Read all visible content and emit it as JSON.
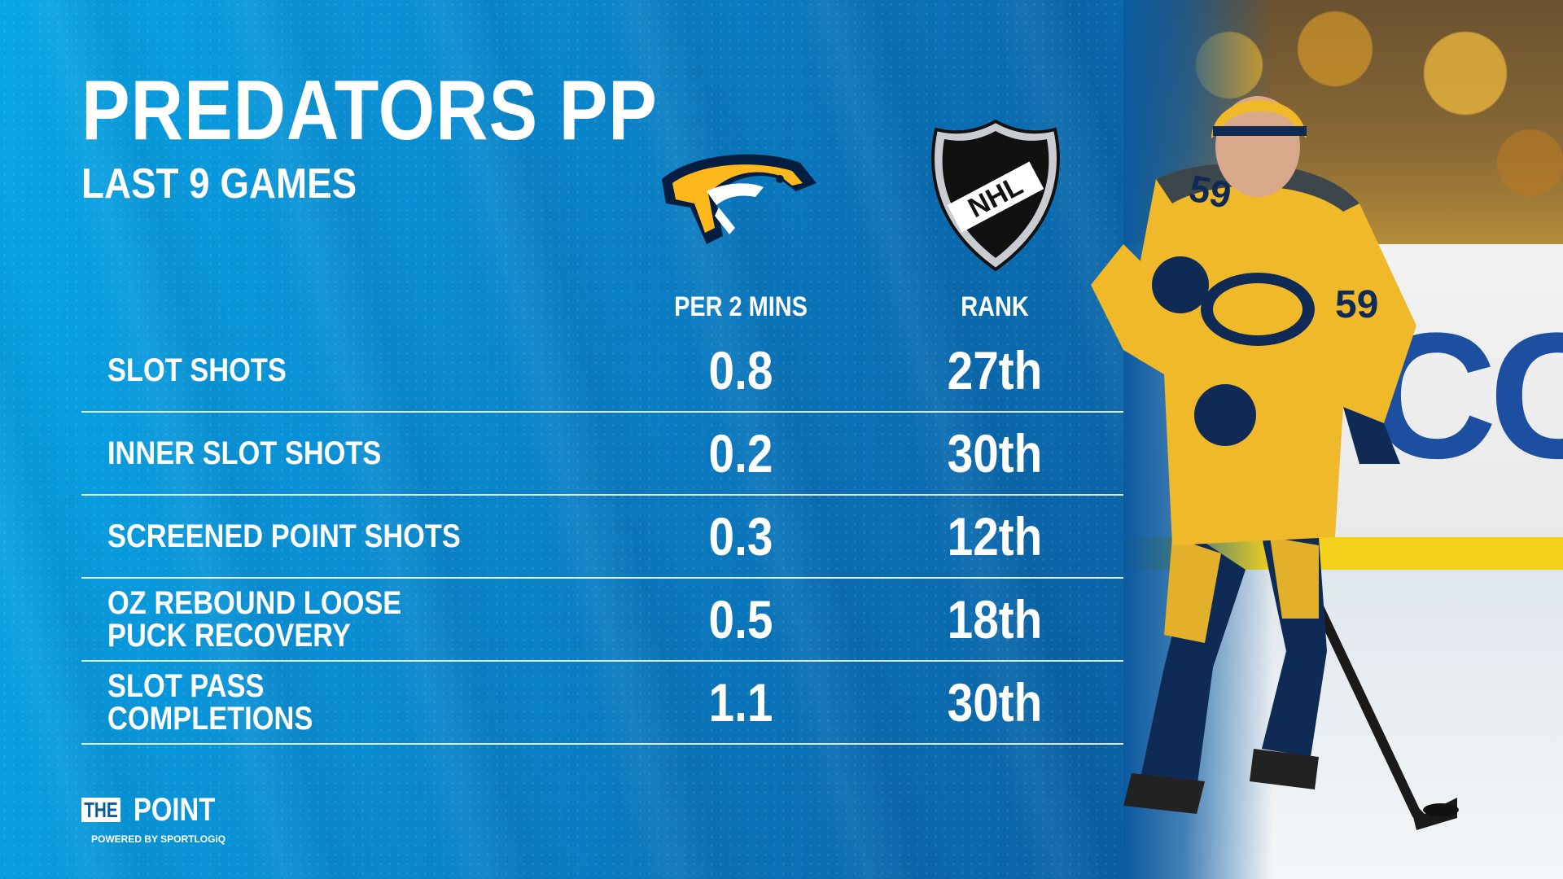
{
  "header": {
    "title": "PREDATORS PP",
    "subtitle": "LAST 9 GAMES"
  },
  "logos": {
    "team": "nashville-predators-logo",
    "league": "nhl-shield-logo"
  },
  "chart_data": {
    "type": "table",
    "columns": [
      "PER 2 MINS",
      "RANK"
    ],
    "rows": [
      {
        "label": "SLOT SHOTS",
        "per2": "0.8",
        "rank": "27th"
      },
      {
        "label": "INNER SLOT SHOTS",
        "per2": "0.2",
        "rank": "30th"
      },
      {
        "label": "SCREENED POINT SHOTS",
        "per2": "0.3",
        "rank": "12th"
      },
      {
        "label": "OZ REBOUND LOOSE PUCK RECOVERY",
        "per2": "0.5",
        "rank": "18th"
      },
      {
        "label": "SLOT PASS COMPLETIONS",
        "per2": "1.1",
        "rank": "30th"
      }
    ]
  },
  "brand": {
    "the": "THE",
    "point": "POINT",
    "powered": "POWERED BY SPORTLOGiQ"
  },
  "colors": {
    "background": "#0a7fc6",
    "team_gold": "#FFB81C",
    "team_navy": "#041E42"
  }
}
